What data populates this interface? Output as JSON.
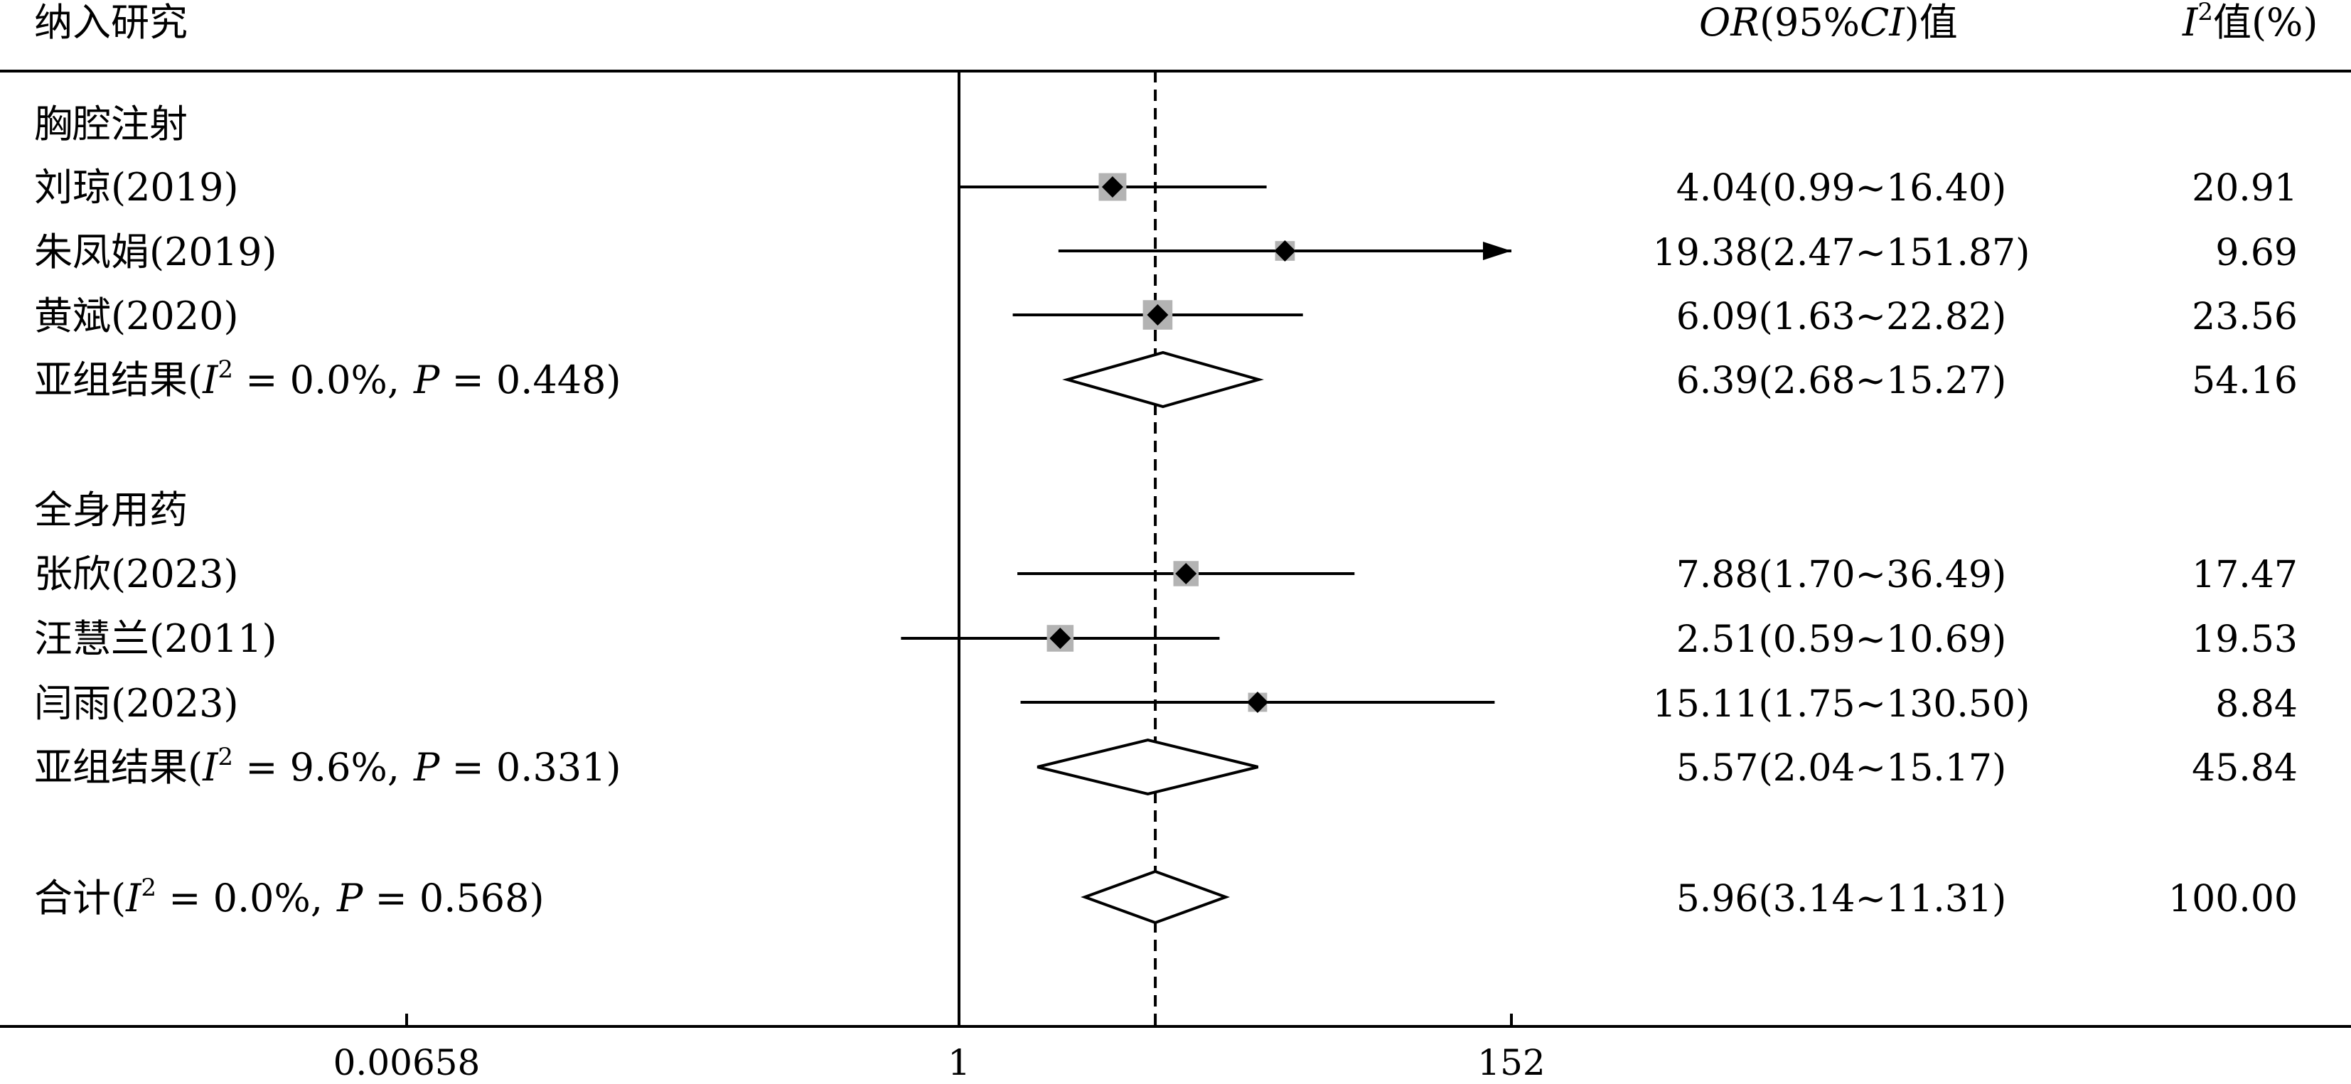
{
  "header": {
    "study_col": "纳入研究",
    "or_col_prefix": "OR",
    "or_col_mid": "(95%",
    "or_col_ci": "CI",
    "or_col_suffix": ")值",
    "weight_col_prefix": "I",
    "weight_col_sup": "2",
    "weight_col_suffix": "值(%)"
  },
  "groups": [
    {
      "label": "胸腔注射",
      "studies": [
        {
          "name": "刘琼(2019)",
          "or_text": "4.04(0.99~16.40)",
          "weight_text": "20.91"
        },
        {
          "name": "朱凤娟(2019)",
          "or_text": "19.38(2.47~151.87)",
          "weight_text": "9.69"
        },
        {
          "name": "黄斌(2020)",
          "or_text": "6.09(1.63~22.82)",
          "weight_text": "23.56"
        }
      ],
      "subtotal": {
        "prefix": "亚组结果(",
        "i": "I",
        "sup": "2",
        "mid": " = 0.0%,",
        "p": "P",
        "suffix": " = 0.448)",
        "or_text": "6.39(2.68~15.27)",
        "weight_text": "54.16"
      }
    },
    {
      "label": "全身用药",
      "studies": [
        {
          "name": "张欣(2023)",
          "or_text": "7.88(1.70~36.49)",
          "weight_text": "17.47"
        },
        {
          "name": "汪慧兰(2011)",
          "or_text": "2.51(0.59~10.69)",
          "weight_text": "19.53"
        },
        {
          "name": "闫雨(2023)",
          "or_text": "15.11(1.75~130.50)",
          "weight_text": "8.84"
        }
      ],
      "subtotal": {
        "prefix": "亚组结果(",
        "i": "I",
        "sup": "2",
        "mid": " = 9.6%,",
        "p": "P",
        "suffix": " = 0.331)",
        "or_text": "5.57(2.04~15.17)",
        "weight_text": "45.84"
      }
    }
  ],
  "overall": {
    "prefix": "合计(",
    "i": "I",
    "sup": "2",
    "mid": " = 0.0%,",
    "p": "P",
    "suffix": " = 0.568)",
    "or_text": "5.96(3.14~11.31)",
    "weight_text": "100.00"
  },
  "axis": {
    "ticks": [
      "0.00658",
      "1",
      "152"
    ]
  },
  "chart_data": {
    "type": "forest",
    "scale": "log",
    "xlim": [
      0.00658,
      152
    ],
    "reference_line": 1,
    "pooled_line": 5.96,
    "rows": [
      {
        "kind": "study",
        "or": 4.04,
        "lo": 0.99,
        "hi": 16.4,
        "weight": 20.91
      },
      {
        "kind": "study",
        "or": 19.38,
        "lo": 2.47,
        "hi": 151.87,
        "weight": 9.69,
        "arrow": true
      },
      {
        "kind": "study",
        "or": 6.09,
        "lo": 1.63,
        "hi": 22.82,
        "weight": 23.56
      },
      {
        "kind": "subtotal",
        "or": 6.39,
        "lo": 2.68,
        "hi": 15.27,
        "weight": 54.16
      },
      {
        "kind": "study",
        "or": 7.88,
        "lo": 1.7,
        "hi": 36.49,
        "weight": 17.47
      },
      {
        "kind": "study",
        "or": 2.51,
        "lo": 0.59,
        "hi": 10.69,
        "weight": 19.53
      },
      {
        "kind": "study",
        "or": 15.11,
        "lo": 1.75,
        "hi": 130.5,
        "weight": 8.84
      },
      {
        "kind": "subtotal",
        "or": 5.57,
        "lo": 2.04,
        "hi": 15.17,
        "weight": 45.84
      },
      {
        "kind": "overall",
        "or": 5.96,
        "lo": 3.14,
        "hi": 11.31,
        "weight": 100.0
      }
    ]
  }
}
